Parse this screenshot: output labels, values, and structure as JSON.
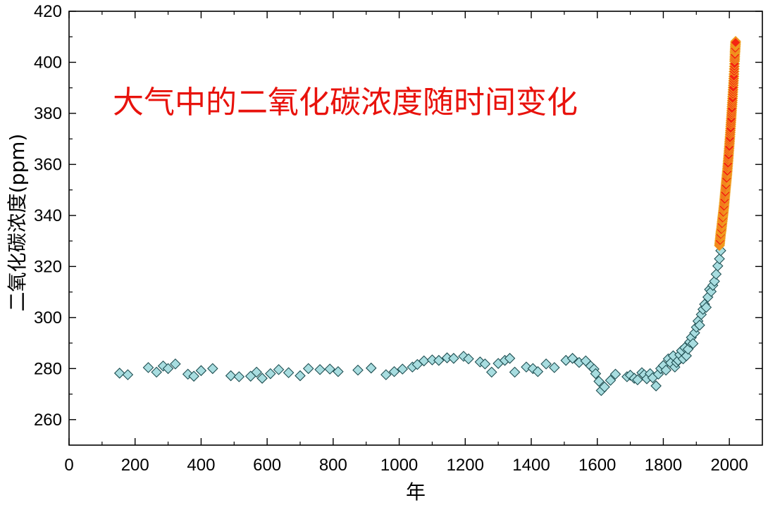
{
  "chart_data": {
    "type": "scatter",
    "title": "大气中的二氧化碳浓度随时间变化",
    "xlabel": "年",
    "ylabel": "二氧化碳浓度(ppm)",
    "xlim": [
      0,
      2100
    ],
    "ylim": [
      250,
      420
    ],
    "x_ticks": [
      "0",
      "200",
      "400",
      "600",
      "800",
      "1000",
      "1200",
      "1400",
      "1600",
      "1800",
      "2000"
    ],
    "y_ticks": [
      "260",
      "280",
      "300",
      "320",
      "340",
      "360",
      "380",
      "400",
      "420"
    ],
    "grid": false,
    "colors": {
      "historical_fill": "#a8dde0",
      "historical_stroke": "#1f4f52",
      "modern_fill": "#f52412",
      "modern_stroke": "#f0a020",
      "title": "#e8120c"
    },
    "series": [
      {
        "marker": "diamond",
        "points": [
          [
            153,
            278.2
          ],
          [
            178,
            277.6
          ],
          [
            240,
            280.4
          ],
          [
            265,
            278.6
          ],
          [
            285,
            281.0
          ],
          [
            300,
            280.0
          ],
          [
            322,
            281.8
          ],
          [
            360,
            277.8
          ],
          [
            378,
            277.0
          ],
          [
            400,
            279.2
          ],
          [
            435,
            280.0
          ],
          [
            490,
            277.2
          ],
          [
            515,
            276.8
          ],
          [
            550,
            277.0
          ],
          [
            568,
            278.6
          ],
          [
            585,
            276.2
          ],
          [
            610,
            278.0
          ],
          [
            635,
            279.6
          ],
          [
            665,
            278.4
          ],
          [
            700,
            277.2
          ],
          [
            725,
            280.0
          ],
          [
            760,
            279.6
          ],
          [
            790,
            279.8
          ],
          [
            815,
            278.8
          ],
          [
            875,
            279.4
          ],
          [
            915,
            280.2
          ],
          [
            960,
            277.6
          ],
          [
            985,
            278.8
          ],
          [
            1010,
            279.8
          ],
          [
            1040,
            280.6
          ],
          [
            1055,
            281.6
          ],
          [
            1075,
            283.0
          ],
          [
            1100,
            283.4
          ],
          [
            1120,
            283.2
          ],
          [
            1145,
            284.2
          ],
          [
            1165,
            284.0
          ],
          [
            1195,
            284.8
          ],
          [
            1210,
            283.8
          ],
          [
            1245,
            282.6
          ],
          [
            1260,
            281.8
          ],
          [
            1280,
            278.6
          ],
          [
            1300,
            282.0
          ],
          [
            1320,
            283.2
          ],
          [
            1335,
            284.0
          ],
          [
            1350,
            278.6
          ],
          [
            1385,
            280.6
          ],
          [
            1405,
            280.0
          ],
          [
            1420,
            278.8
          ],
          [
            1445,
            281.8
          ],
          [
            1470,
            280.4
          ],
          [
            1505,
            283.2
          ],
          [
            1525,
            284.0
          ],
          [
            1545,
            282.4
          ],
          [
            1565,
            283.0
          ],
          [
            1580,
            281.0
          ],
          [
            1590,
            279.8
          ],
          [
            1595,
            278.0
          ],
          [
            1605,
            275.0
          ],
          [
            1612,
            271.4
          ],
          [
            1622,
            272.8
          ],
          [
            1640,
            275.4
          ],
          [
            1655,
            277.8
          ],
          [
            1690,
            276.8
          ],
          [
            1700,
            277.4
          ],
          [
            1712,
            276.2
          ],
          [
            1722,
            275.6
          ],
          [
            1735,
            278.4
          ],
          [
            1742,
            277.6
          ],
          [
            1750,
            276.0
          ],
          [
            1760,
            278.0
          ],
          [
            1768,
            276.4
          ],
          [
            1778,
            273.2
          ],
          [
            1785,
            277.8
          ],
          [
            1792,
            280.0
          ],
          [
            1800,
            281.2
          ],
          [
            1808,
            279.4
          ],
          [
            1815,
            283.8
          ],
          [
            1822,
            282.2
          ],
          [
            1830,
            285.0
          ],
          [
            1835,
            280.6
          ],
          [
            1840,
            282.4
          ],
          [
            1845,
            283.2
          ],
          [
            1850,
            285.4
          ],
          [
            1855,
            287.0
          ],
          [
            1860,
            283.8
          ],
          [
            1865,
            288.2
          ],
          [
            1870,
            285.0
          ],
          [
            1875,
            287.6
          ],
          [
            1880,
            290.4
          ],
          [
            1885,
            292.2
          ],
          [
            1890,
            289.8
          ],
          [
            1895,
            294.0
          ],
          [
            1900,
            296.2
          ],
          [
            1905,
            298.6
          ],
          [
            1910,
            297.0
          ],
          [
            1915,
            301.2
          ],
          [
            1920,
            303.2
          ],
          [
            1925,
            305.2
          ],
          [
            1930,
            304.0
          ],
          [
            1935,
            308.0
          ],
          [
            1940,
            311.0
          ],
          [
            1945,
            310.2
          ],
          [
            1950,
            312.6
          ],
          [
            1955,
            314.2
          ],
          [
            1960,
            317.0
          ],
          [
            1965,
            320.2
          ],
          [
            1970,
            323.0
          ],
          [
            1974,
            326.2
          ]
        ]
      },
      {
        "marker": "diamond",
        "points": [
          [
            1970,
            328.2
          ],
          [
            1972,
            330.6
          ],
          [
            1974,
            333.0
          ],
          [
            1976,
            334.8
          ],
          [
            1978,
            337.2
          ],
          [
            1980,
            339.4
          ],
          [
            1982,
            341.6
          ],
          [
            1984,
            344.0
          ],
          [
            1986,
            346.8
          ],
          [
            1988,
            349.6
          ],
          [
            1990,
            352.4
          ],
          [
            1992,
            355.0
          ],
          [
            1994,
            357.8
          ],
          [
            1996,
            361.0
          ],
          [
            1998,
            364.2
          ],
          [
            2000,
            367.6
          ],
          [
            2002,
            371.0
          ],
          [
            2004,
            374.8
          ],
          [
            2006,
            378.6
          ],
          [
            2008,
            382.6
          ],
          [
            2010,
            386.6
          ],
          [
            2012,
            391.0
          ],
          [
            2014,
            395.4
          ],
          [
            2016,
            400.4
          ],
          [
            2017,
            403.6
          ],
          [
            2018,
            406.0
          ],
          [
            2019,
            408.2
          ]
        ]
      }
    ]
  }
}
